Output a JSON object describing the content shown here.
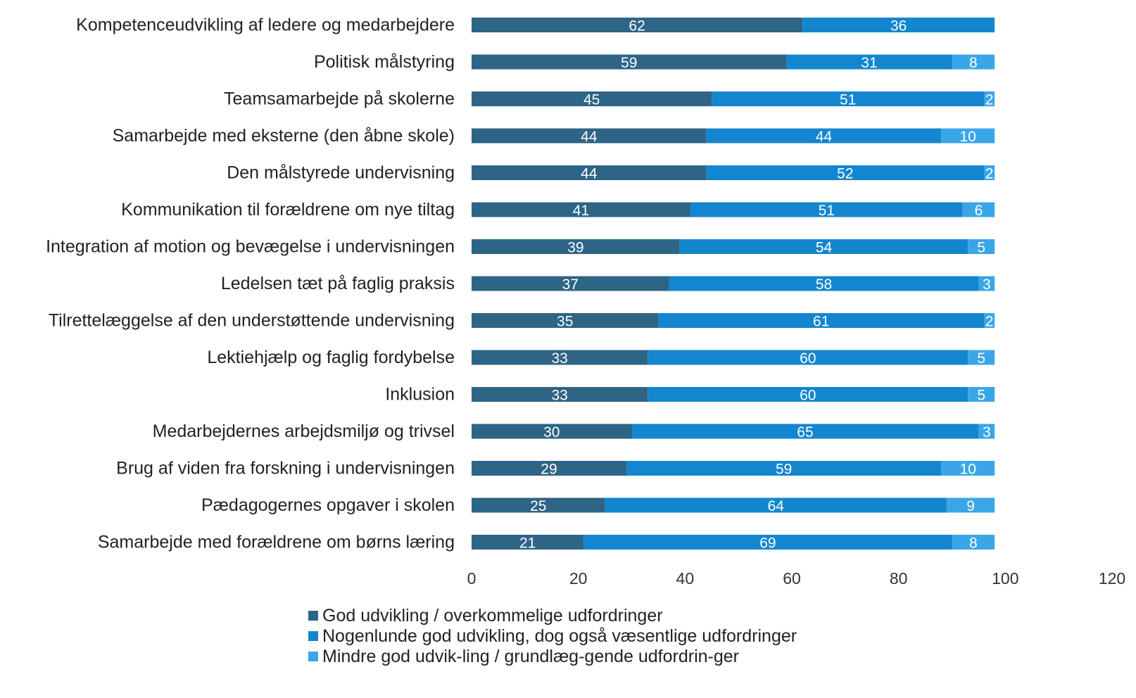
{
  "chart_data": {
    "type": "bar",
    "orientation": "horizontal",
    "stacked": true,
    "categories": [
      "Kompetenceudvikling af ledere og medarbejdere",
      "Politisk målstyring",
      "Teamsamarbejde på skolerne",
      "Samarbejde med eksterne (den åbne skole)",
      "Den målstyrede undervisning",
      "Kommunikation til forældrene om nye tiltag",
      "Integration af motion og bevægelse i undervisningen",
      "Ledelsen tæt på faglig praksis",
      "Tilrettelæggelse af den understøttende undervisning",
      "Lektiehjælp og faglig fordybelse",
      "Inklusion",
      "Medarbejdernes arbejdsmiljø og trivsel",
      "Brug af viden fra forskning i undervisningen",
      "Pædagogernes opgaver i skolen",
      "Samarbejde med forældrene om børns læring"
    ],
    "series": [
      {
        "name": "God udvikling / overkommelige udfordringer",
        "color": "#2e6486",
        "values": [
          62,
          59,
          45,
          44,
          44,
          41,
          39,
          37,
          35,
          33,
          33,
          30,
          29,
          25,
          21
        ]
      },
      {
        "name": "Nogenlunde god udvikling, dog også væsentlige udfordringer",
        "color": "#1386cf",
        "values": [
          36,
          31,
          51,
          44,
          52,
          51,
          54,
          58,
          61,
          60,
          60,
          65,
          59,
          64,
          69
        ]
      },
      {
        "name": "Mindre god udvik-ling / grundlæg-gende udfordrin-ger",
        "color": "#3aa6e8",
        "values": [
          null,
          8,
          2,
          10,
          2,
          6,
          5,
          3,
          2,
          5,
          5,
          3,
          10,
          9,
          8
        ]
      }
    ],
    "xlim": [
      0,
      120
    ],
    "xticks": [
      "0",
      "20",
      "40",
      "60",
      "80",
      "100",
      "120"
    ],
    "grid": false,
    "legend_position": "bottom"
  }
}
